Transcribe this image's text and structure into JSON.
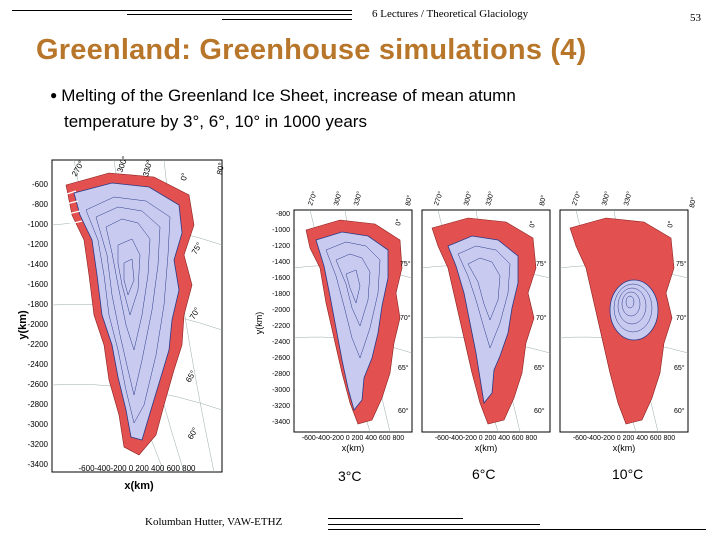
{
  "header": {
    "course_title": "6 Lectures / Theoretical Glaciology",
    "page_number": "53"
  },
  "slide": {
    "title": "Greenland: Greenhouse simulations (4)",
    "bullet_line1": "Melting of the Greenland Ice Sheet, increase of mean atumn",
    "bullet_line2": "temperature by 3°, 6°, 10° in 1000 years"
  },
  "figures": {
    "main_map": {
      "y_axis_label": "y(km)",
      "x_axis_label": "x(km)",
      "y_ticks": [
        "-600",
        "-800",
        "-1000",
        "-1200",
        "-1400",
        "-1600",
        "-1800",
        "-2000",
        "-2200",
        "-2400",
        "-2600",
        "-2800",
        "-3000",
        "-3200",
        "-3400"
      ],
      "x_ticks": "-600-400-200 0 200 400 600 800",
      "lon_labels": [
        "270°",
        "300°",
        "330°",
        "0°"
      ],
      "lat_labels": [
        "80°",
        "75°",
        "70°",
        "65°",
        "60°"
      ]
    },
    "small_map": {
      "y_axis_label": "y(km)",
      "x_axis_label": "x(km)",
      "y_ticks": [
        "-800",
        "-1000",
        "-1200",
        "-1400",
        "-1600",
        "-1800",
        "-2000",
        "-2200",
        "-2400",
        "-2600",
        "-2800",
        "-3000",
        "-3200",
        "-3400"
      ],
      "x_ticks": "-600-400-200 0 200 400 600 800",
      "lon_labels": [
        "270°",
        "300°",
        "330°",
        "0°"
      ],
      "lat_labels": [
        "80°",
        "75°",
        "70°",
        "65°",
        "60°"
      ]
    },
    "captions": [
      "3°C",
      "6°C",
      "10°C"
    ]
  },
  "footer": {
    "author": "Kolumban Hutter, VAW-ETHZ"
  },
  "colors": {
    "title": "#b8762a",
    "ice": "#c8cbef",
    "contour": "#2a3a8a",
    "melt": "#e2504f"
  }
}
